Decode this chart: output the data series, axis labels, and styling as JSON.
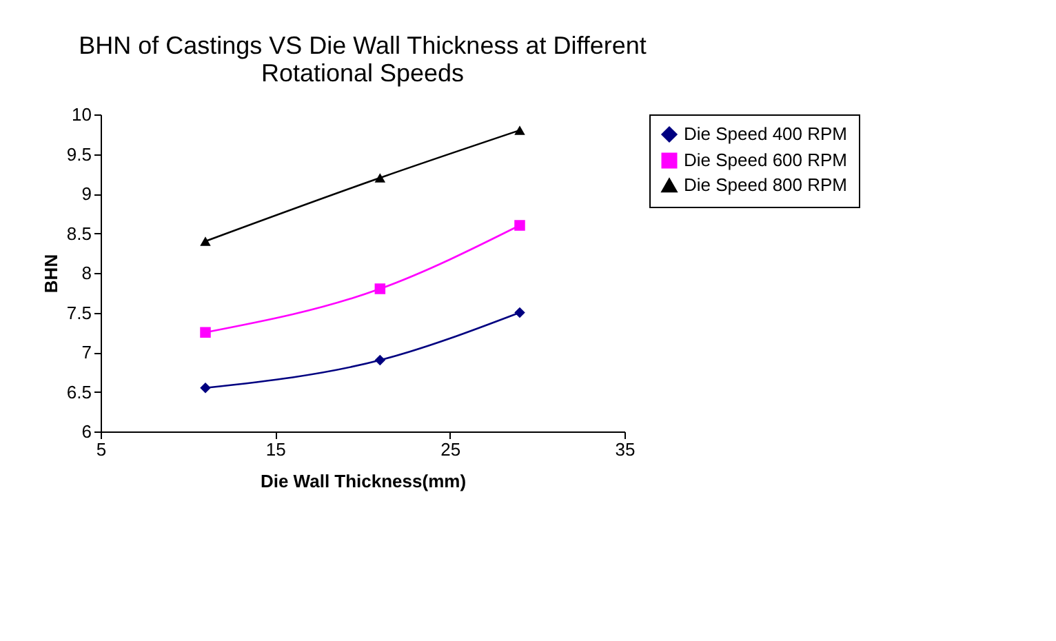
{
  "chart_data": {
    "type": "line",
    "title": [
      "BHN of Castings VS Die Wall Thickness at Different",
      "Rotational Speeds"
    ],
    "xlabel": "Die Wall Thickness(mm)",
    "ylabel": "BHN",
    "x": [
      11,
      21,
      29
    ],
    "xlim": [
      5,
      35
    ],
    "xticks": [
      5,
      15,
      25,
      35
    ],
    "ylim": [
      6,
      10
    ],
    "yticks": [
      6,
      6.5,
      7,
      7.5,
      8,
      8.5,
      9,
      9.5,
      10
    ],
    "grid": false,
    "legend": "right",
    "series": [
      {
        "name": "Die Speed 400 RPM",
        "color": "#000080",
        "marker": "diamond",
        "values": [
          6.55,
          6.9,
          7.5
        ]
      },
      {
        "name": "Die Speed 600 RPM",
        "color": "#ff00ff",
        "marker": "square",
        "values": [
          7.25,
          7.8,
          8.6
        ]
      },
      {
        "name": "Die Speed 800 RPM",
        "color": "#000000",
        "marker": "triangle",
        "values": [
          8.4,
          9.2,
          9.8
        ]
      }
    ]
  }
}
